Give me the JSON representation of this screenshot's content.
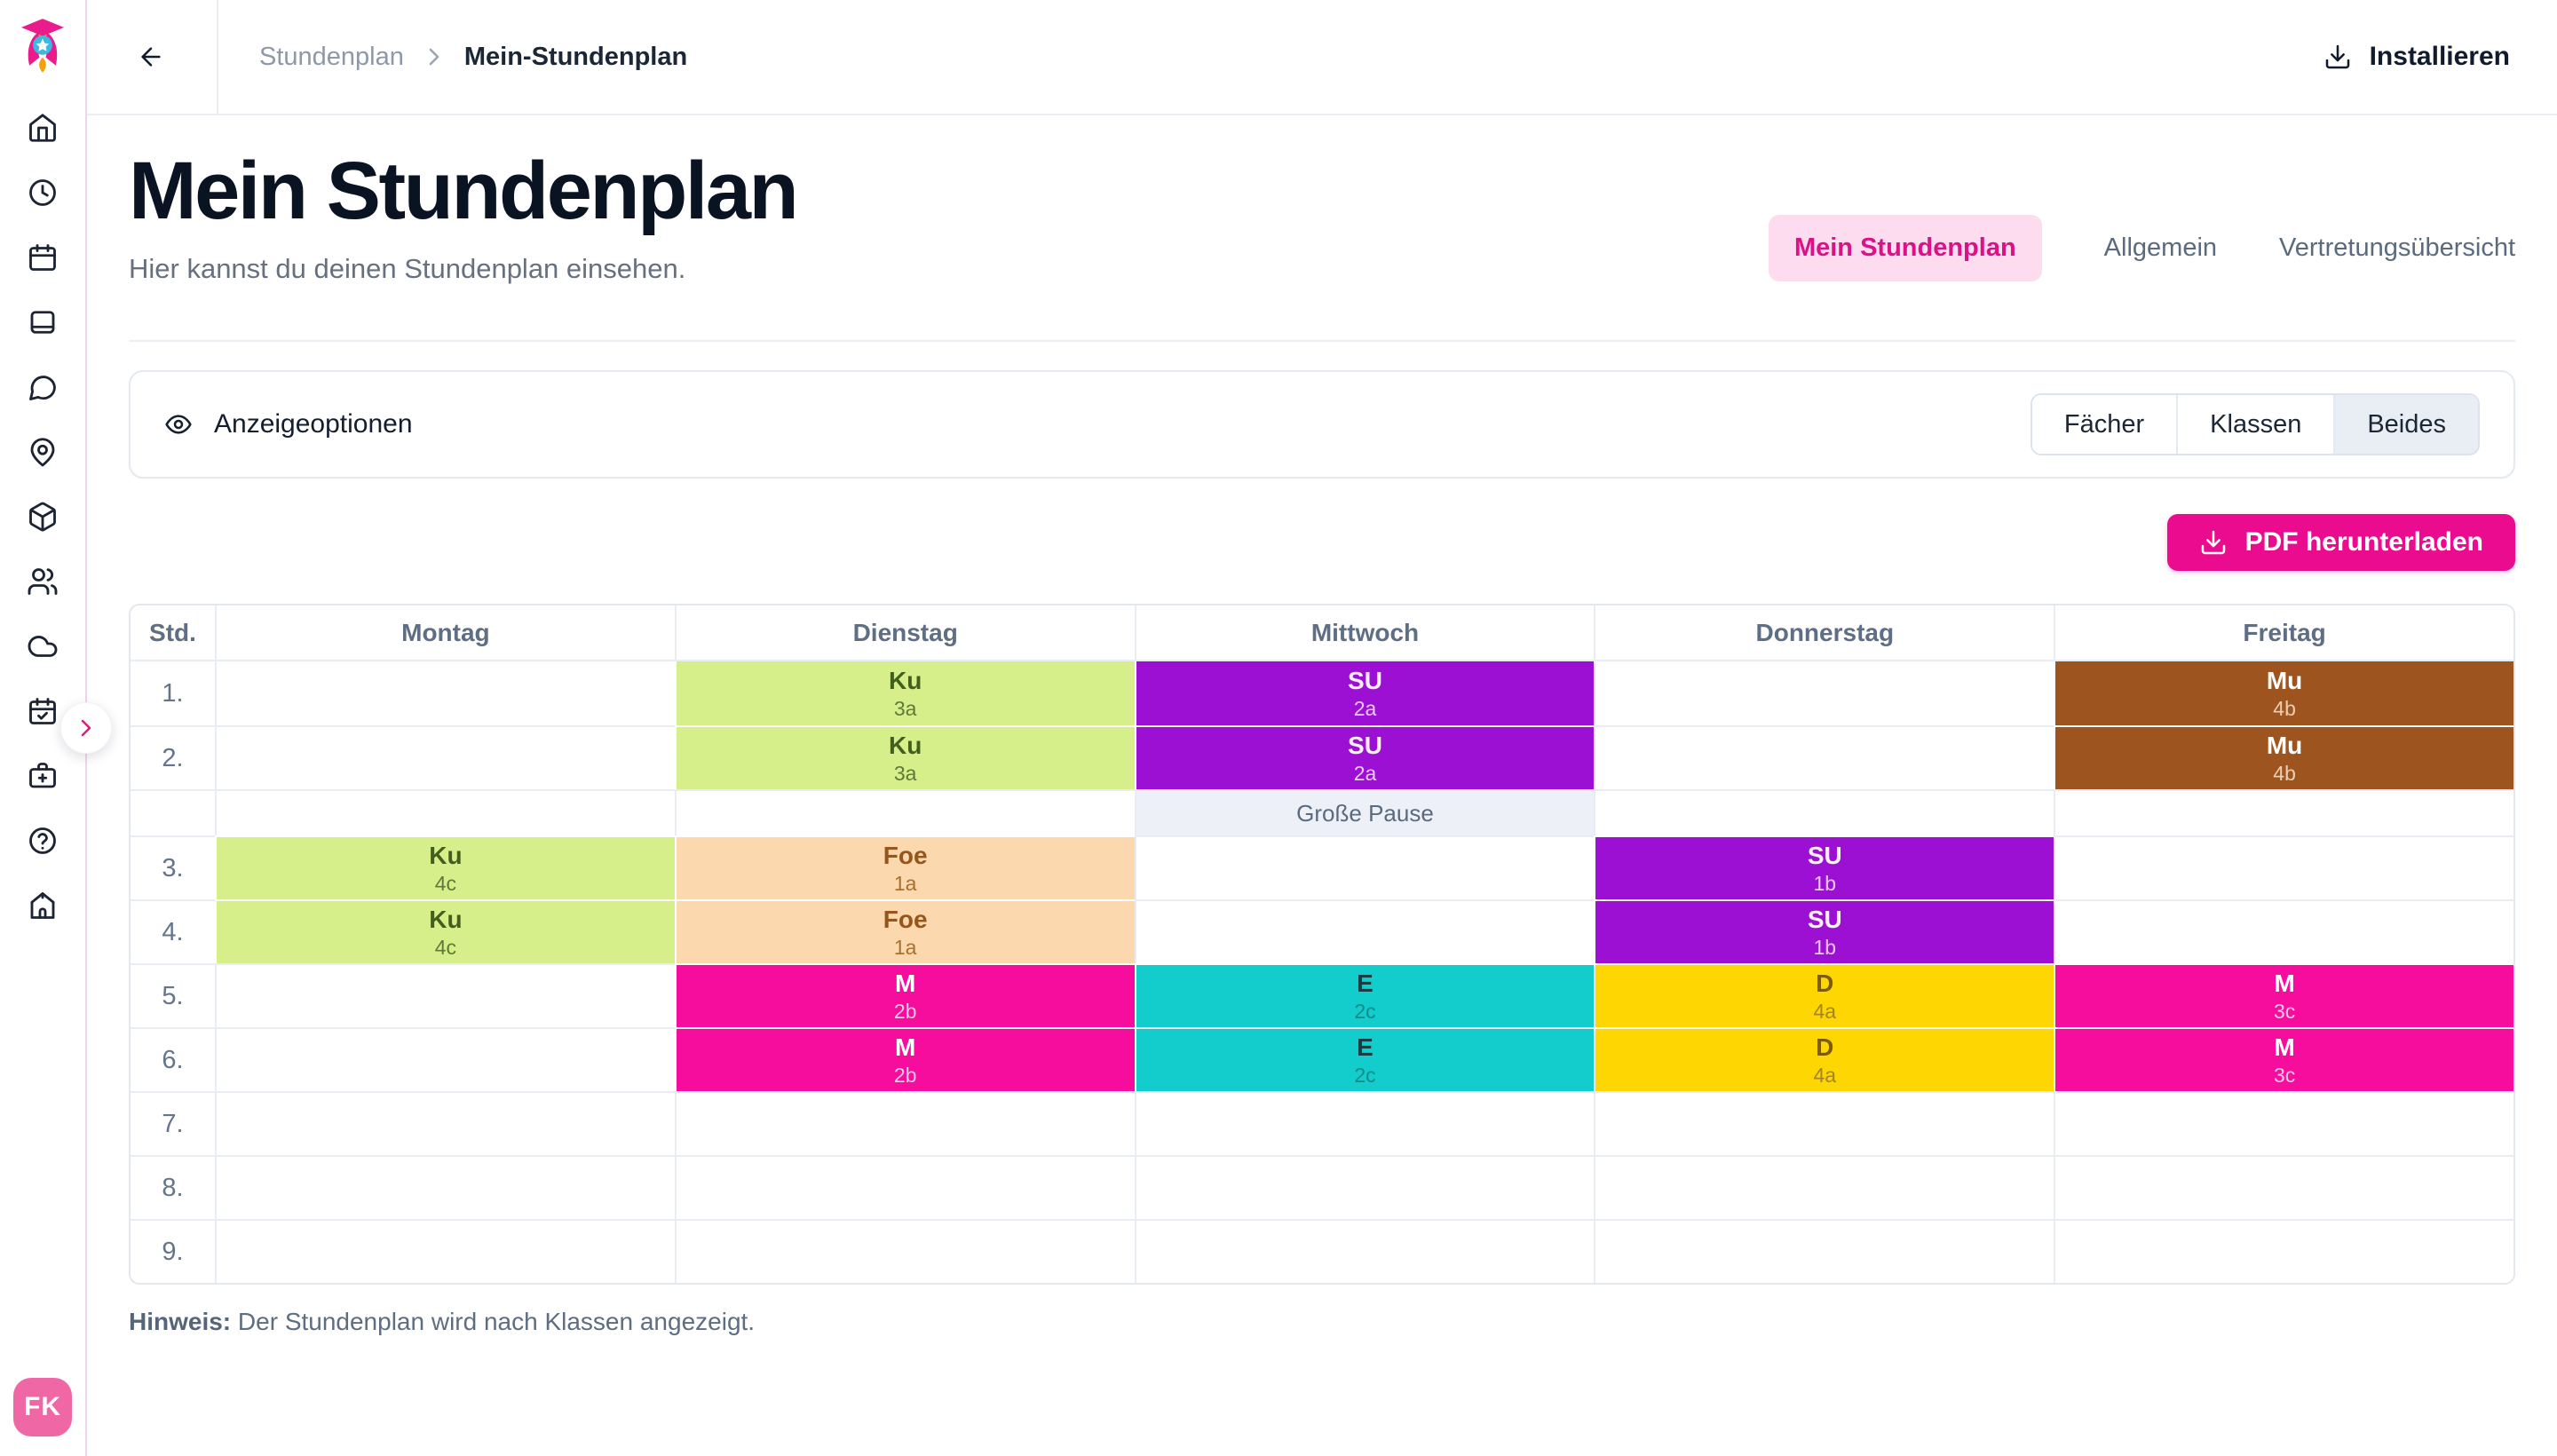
{
  "sidebar": {
    "items": [
      {
        "icon": "home"
      },
      {
        "icon": "clock"
      },
      {
        "icon": "calendar"
      },
      {
        "icon": "book"
      },
      {
        "icon": "chat"
      },
      {
        "icon": "map-pin"
      },
      {
        "icon": "package"
      },
      {
        "icon": "users"
      },
      {
        "icon": "cloud"
      },
      {
        "icon": "calendar-check"
      },
      {
        "icon": "medical-bag"
      },
      {
        "icon": "help-circle"
      },
      {
        "icon": "school"
      }
    ],
    "avatar_initials": "FK"
  },
  "topbar": {
    "breadcrumb_root": "Stundenplan",
    "breadcrumb_current": "Mein-Stundenplan",
    "install_label": "Installieren"
  },
  "page": {
    "title": "Mein Stundenplan",
    "subtitle": "Hier kannst du deinen Stundenplan einsehen.",
    "tabs": [
      {
        "label": "Mein Stundenplan",
        "active": true
      },
      {
        "label": "Allgemein",
        "active": false
      },
      {
        "label": "Vertretungsübersicht",
        "active": false
      }
    ]
  },
  "options": {
    "label": "Anzeigeoptionen",
    "segments": [
      {
        "label": "Fächer",
        "selected": false
      },
      {
        "label": "Klassen",
        "selected": false
      },
      {
        "label": "Beides",
        "selected": true
      }
    ]
  },
  "pdf_button_label": "PDF herunterladen",
  "timetable": {
    "columns": [
      "Std.",
      "Montag",
      "Dienstag",
      "Mittwoch",
      "Donnerstag",
      "Freitag"
    ],
    "palette": {
      "green": {
        "bg": "#d6ef8a",
        "subject_color": "#445f1d",
        "class_color": "#5f7a38"
      },
      "peach": {
        "bg": "#fbd8ae",
        "subject_color": "#96561b",
        "class_color": "#a8702f"
      },
      "purple": {
        "bg": "#9c10d3",
        "subject_color": "#fdeffb",
        "class_color": "#eac9f3"
      },
      "brown": {
        "bg": "#9e541e",
        "subject_color": "#ffffff",
        "class_color": "#eccfb4"
      },
      "magenta": {
        "bg": "#f60d9e",
        "subject_color": "#ffffff",
        "class_color": "#fcc9e4"
      },
      "cyan": {
        "bg": "#13cdcd",
        "subject_color": "#173f46",
        "class_color": "#0d8b8b"
      },
      "yellow": {
        "bg": "#fed602",
        "subject_color": "#7c5c08",
        "class_color": "#a3832b"
      }
    },
    "rows": [
      {
        "period": "1.",
        "cells": [
          null,
          {
            "subject": "Ku",
            "class_name": "3a",
            "color": "green"
          },
          {
            "subject": "SU",
            "class_name": "2a",
            "color": "purple"
          },
          null,
          {
            "subject": "Mu",
            "class_name": "4b",
            "color": "brown"
          }
        ]
      },
      {
        "period": "2.",
        "cells": [
          null,
          {
            "subject": "Ku",
            "class_name": "3a",
            "color": "green"
          },
          {
            "subject": "SU",
            "class_name": "2a",
            "color": "purple"
          },
          null,
          {
            "subject": "Mu",
            "class_name": "4b",
            "color": "brown"
          }
        ]
      },
      {
        "type": "break",
        "label": "Große Pause",
        "day_index": 2
      },
      {
        "period": "3.",
        "cells": [
          {
            "subject": "Ku",
            "class_name": "4c",
            "color": "green"
          },
          {
            "subject": "Foe",
            "class_name": "1a",
            "color": "peach"
          },
          null,
          {
            "subject": "SU",
            "class_name": "1b",
            "color": "purple"
          },
          null
        ]
      },
      {
        "period": "4.",
        "cells": [
          {
            "subject": "Ku",
            "class_name": "4c",
            "color": "green"
          },
          {
            "subject": "Foe",
            "class_name": "1a",
            "color": "peach"
          },
          null,
          {
            "subject": "SU",
            "class_name": "1b",
            "color": "purple"
          },
          null
        ]
      },
      {
        "period": "5.",
        "cells": [
          null,
          {
            "subject": "M",
            "class_name": "2b",
            "color": "magenta"
          },
          {
            "subject": "E",
            "class_name": "2c",
            "color": "cyan"
          },
          {
            "subject": "D",
            "class_name": "4a",
            "color": "yellow"
          },
          {
            "subject": "M",
            "class_name": "3c",
            "color": "magenta"
          }
        ]
      },
      {
        "period": "6.",
        "cells": [
          null,
          {
            "subject": "M",
            "class_name": "2b",
            "color": "magenta"
          },
          {
            "subject": "E",
            "class_name": "2c",
            "color": "cyan"
          },
          {
            "subject": "D",
            "class_name": "4a",
            "color": "yellow"
          },
          {
            "subject": "M",
            "class_name": "3c",
            "color": "magenta"
          }
        ]
      },
      {
        "period": "7.",
        "cells": [
          null,
          null,
          null,
          null,
          null
        ]
      },
      {
        "period": "8.",
        "cells": [
          null,
          null,
          null,
          null,
          null
        ]
      },
      {
        "period": "9.",
        "cells": [
          null,
          null,
          null,
          null,
          null
        ]
      }
    ]
  },
  "note": {
    "bold": "Hinweis:",
    "text": " Der Stundenplan wird nach Klassen angezeigt."
  },
  "colors": {
    "brand_pink": "#ea0b8e",
    "tab_active_bg": "#fcdcee",
    "tab_active_text": "#da1286",
    "avatar_pink": "#ef68a5",
    "segment_selected_bg": "#e9eef5",
    "grid_line": "#e9edf3",
    "pause_bg": "#edf1f7"
  }
}
